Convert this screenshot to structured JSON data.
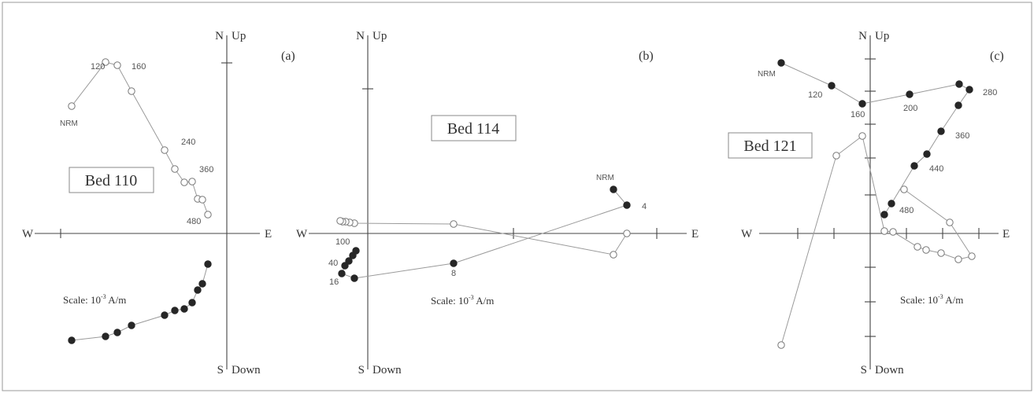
{
  "axes": {
    "north": "N",
    "south": "S",
    "west": "W",
    "east": "E",
    "up": "Up",
    "down": "Down"
  },
  "scale": {
    "prefix": "Scale: 10",
    "exponent": "-3",
    "suffix": " A/m"
  },
  "panels": [
    {
      "letter": "(a)",
      "bed": "Bed 110",
      "step_labels": [
        "NRM",
        "120",
        "160",
        "240",
        "360",
        "480"
      ]
    },
    {
      "letter": "(b)",
      "bed": "Bed 114",
      "step_labels": [
        "NRM",
        "4",
        "8",
        "16",
        "40",
        "100"
      ]
    },
    {
      "letter": "(c)",
      "bed": "Bed 121",
      "step_labels": [
        "NRM",
        "120",
        "160",
        "200",
        "280",
        "360",
        "440",
        "480"
      ]
    }
  ],
  "chart_data": [
    {
      "type": "scatter",
      "title": "Bed 110",
      "panel": "(a)",
      "x_axis": "W–E",
      "y_axis": "N Up / S Down",
      "series": [
        {
          "name": "",
          "marker": "open",
          "points": [
            [
              -197,
              -162
            ],
            [
              -154,
              -218
            ],
            [
              -139,
              -214
            ],
            [
              -121,
              -181
            ],
            [
              -79,
              -106
            ],
            [
              -66,
              -82
            ],
            [
              -54,
              -65
            ],
            [
              -44,
              -66
            ],
            [
              -37,
              -44
            ],
            [
              -31,
              -43
            ],
            [
              -24,
              -24
            ]
          ]
        },
        {
          "name": "",
          "marker": "filled",
          "points": [
            [
              -197,
              136
            ],
            [
              -154,
              131
            ],
            [
              -139,
              126
            ],
            [
              -121,
              117
            ],
            [
              -79,
              104
            ],
            [
              -66,
              98
            ],
            [
              -54,
              96
            ],
            [
              -44,
              88
            ],
            [
              -37,
              72
            ],
            [
              -31,
              64
            ],
            [
              -24,
              39
            ]
          ]
        }
      ]
    },
    {
      "type": "scatter",
      "title": "Bed 114",
      "panel": "(b)",
      "x_axis": "W–E",
      "y_axis": "N Up / S Down",
      "series": [
        {
          "name": "",
          "marker": "open",
          "points": [
            [
              329,
              0
            ],
            [
              312,
              27
            ],
            [
              109,
              -12
            ],
            [
              -17,
              -13
            ],
            [
              -23,
              -14
            ],
            [
              -28,
              -15
            ],
            [
              -32,
              -15
            ],
            [
              -35,
              -16
            ]
          ]
        },
        {
          "name": "",
          "marker": "filled",
          "points": [
            [
              312,
              -56
            ],
            [
              329,
              -36
            ],
            [
              109,
              38
            ],
            [
              -17,
              57
            ],
            [
              -33,
              51
            ],
            [
              -29,
              41
            ],
            [
              -24,
              35
            ],
            [
              -19,
              28
            ],
            [
              -15,
              22
            ]
          ]
        }
      ]
    },
    {
      "type": "scatter",
      "title": "Bed 121",
      "panel": "(c)",
      "x_axis": "W–E",
      "y_axis": "N Up / S Down",
      "series": [
        {
          "name": "",
          "marker": "open",
          "points": [
            [
              -113,
              142
            ],
            [
              -43,
              -99
            ],
            [
              -10,
              -124
            ],
            [
              18,
              -3
            ],
            [
              29,
              -2
            ],
            [
              60,
              17
            ],
            [
              71,
              21
            ],
            [
              90,
              25
            ],
            [
              112,
              33
            ],
            [
              129,
              29
            ],
            [
              101,
              -14
            ],
            [
              43,
              -56
            ]
          ]
        },
        {
          "name": "",
          "marker": "filled",
          "points": [
            [
              -113,
              -217
            ],
            [
              -49,
              -188
            ],
            [
              -10,
              -165
            ],
            [
              50,
              -177
            ],
            [
              113,
              -190
            ],
            [
              126,
              -183
            ],
            [
              112,
              -163
            ],
            [
              90,
              -130
            ],
            [
              72,
              -101
            ],
            [
              56,
              -86
            ],
            [
              27,
              -38
            ],
            [
              18,
              -24
            ]
          ]
        }
      ]
    }
  ]
}
